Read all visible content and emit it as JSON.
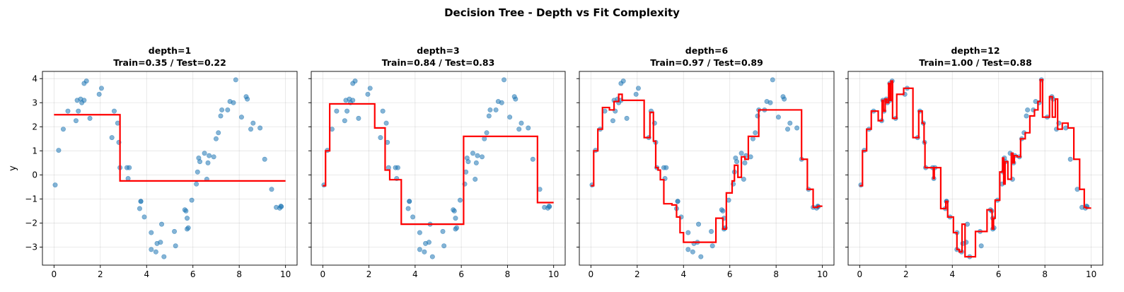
{
  "figure": {
    "suptitle": "Decision Tree - Depth vs Fit Complexity",
    "ylabel": "y"
  },
  "chart_data": {
    "type": "scatter",
    "xlim": [
      -0.5,
      10.5
    ],
    "ylim": [
      -3.75,
      4.3
    ],
    "xticks": [
      0,
      2,
      4,
      6,
      8,
      10
    ],
    "yticks": [
      -3,
      -2,
      -1,
      0,
      1,
      2,
      3,
      4
    ],
    "grid": true,
    "colors": {
      "points": "#1f77b4",
      "fit": "#ff0000"
    },
    "points": {
      "x": [
        0.05,
        0.2,
        0.4,
        0.6,
        0.95,
        1.0,
        1.05,
        1.15,
        1.2,
        1.3,
        1.3,
        1.4,
        1.55,
        1.95,
        2.05,
        2.5,
        2.6,
        2.75,
        2.8,
        2.85,
        3.15,
        3.2,
        3.25,
        3.7,
        3.75,
        3.75,
        3.9,
        4.2,
        4.2,
        4.4,
        4.45,
        4.6,
        4.65,
        4.75,
        5.2,
        5.25,
        5.65,
        5.7,
        5.75,
        5.75,
        5.8,
        5.95,
        6.15,
        6.2,
        6.25,
        6.3,
        6.5,
        6.6,
        6.65,
        6.7,
        6.9,
        7.0,
        7.1,
        7.2,
        7.25,
        7.5,
        7.6,
        7.75,
        7.85,
        8.1,
        8.3,
        8.35,
        8.5,
        8.6,
        8.9,
        9.1,
        9.4,
        9.6,
        9.75,
        9.8,
        9.82
      ],
      "y": [
        -0.42,
        1.02,
        1.9,
        2.65,
        2.25,
        3.1,
        2.65,
        3.15,
        3.0,
        3.8,
        3.1,
        3.9,
        2.35,
        3.35,
        3.6,
        1.55,
        2.65,
        2.15,
        1.35,
        0.3,
        0.3,
        -0.15,
        0.3,
        -1.4,
        -1.1,
        -1.1,
        -1.75,
        -2.4,
        -3.1,
        -3.2,
        -2.85,
        -2.8,
        -2.05,
        -3.4,
        -2.35,
        -2.95,
        -1.45,
        -1.5,
        -1.8,
        -2.25,
        -2.2,
        -1.05,
        -0.38,
        0.12,
        0.7,
        0.55,
        0.9,
        -0.18,
        0.5,
        0.8,
        0.75,
        1.5,
        1.75,
        2.45,
        2.7,
        2.7,
        3.05,
        3.0,
        3.95,
        2.4,
        3.25,
        3.15,
        1.9,
        2.15,
        1.95,
        0.65,
        -0.6,
        -1.35,
        -1.38,
        -1.3,
        -1.32
      ]
    },
    "panels": [
      {
        "title": "depth=1",
        "subtitle": "Train=0.35 / Test=0.22",
        "depth": 1,
        "train_score": 0.35,
        "test_score": 0.22,
        "fit": {
          "x": [
            0,
            2.85,
            2.85,
            10
          ],
          "y": [
            2.5,
            2.5,
            -0.25,
            -0.25
          ]
        }
      },
      {
        "title": "depth=3",
        "subtitle": "Train=0.84 / Test=0.83",
        "depth": 3,
        "train_score": 0.84,
        "test_score": 0.83,
        "fit": {
          "x": [
            0,
            0.12,
            0.12,
            0.3,
            0.3,
            2.25,
            2.25,
            2.7,
            2.7,
            2.9,
            2.9,
            3.4,
            3.4,
            6.1,
            6.1,
            9.3,
            9.3,
            10
          ],
          "y": [
            -0.45,
            -0.45,
            1.0,
            1.0,
            2.95,
            2.95,
            1.95,
            1.95,
            0.2,
            0.2,
            -0.2,
            -0.2,
            -2.05,
            -2.05,
            1.6,
            1.6,
            -1.15,
            -1.15
          ]
        }
      },
      {
        "title": "depth=6",
        "subtitle": "Train=0.97 / Test=0.89",
        "depth": 6,
        "train_score": 0.97,
        "test_score": 0.89,
        "fit": {
          "x": [
            0,
            0.12,
            0.12,
            0.3,
            0.3,
            0.5,
            0.5,
            0.8,
            0.8,
            1.0,
            1.0,
            1.2,
            1.2,
            1.35,
            1.35,
            1.6,
            1.6,
            2.3,
            2.3,
            2.55,
            2.55,
            2.7,
            2.7,
            2.8,
            2.8,
            2.9,
            2.9,
            3.0,
            3.0,
            3.15,
            3.15,
            3.5,
            3.5,
            3.7,
            3.7,
            3.85,
            3.85,
            4.0,
            4.0,
            4.6,
            4.6,
            5.4,
            5.4,
            5.7,
            5.7,
            5.85,
            5.85,
            6.1,
            6.1,
            6.2,
            6.2,
            6.35,
            6.35,
            6.5,
            6.5,
            6.65,
            6.65,
            6.8,
            6.8,
            6.95,
            6.95,
            7.25,
            7.25,
            7.75,
            7.75,
            9.1,
            9.1,
            9.35,
            9.35,
            9.6,
            9.6,
            9.8,
            9.8,
            10
          ],
          "y": [
            -0.45,
            -0.45,
            1.0,
            1.0,
            1.9,
            1.9,
            2.8,
            2.8,
            2.7,
            2.7,
            3.05,
            3.05,
            3.35,
            3.35,
            3.1,
            3.1,
            3.1,
            3.1,
            1.55,
            1.55,
            2.6,
            2.6,
            1.4,
            1.4,
            0.3,
            0.3,
            0.2,
            0.2,
            -0.2,
            -0.2,
            -1.2,
            -1.2,
            -1.25,
            -1.25,
            -1.75,
            -1.75,
            -2.4,
            -2.4,
            -2.8,
            -2.8,
            -2.8,
            -2.8,
            -1.8,
            -1.8,
            -2.25,
            -2.25,
            -0.75,
            -0.75,
            -0.25,
            -0.25,
            0.4,
            0.4,
            -0.1,
            -0.1,
            0.75,
            0.75,
            0.65,
            0.65,
            1.6,
            1.6,
            1.6,
            1.6,
            2.7,
            2.7,
            2.7,
            2.7,
            0.65,
            0.65,
            -0.6,
            -0.6,
            -1.35,
            -1.35,
            -1.3,
            -1.3
          ]
        }
      },
      {
        "title": "depth=12",
        "subtitle": "Train=1.00 / Test=0.88",
        "depth": 12,
        "train_score": 1.0,
        "test_score": 0.88,
        "fit": {
          "x": [
            0,
            0.12,
            0.12,
            0.3,
            0.3,
            0.5,
            0.5,
            0.8,
            0.8,
            0.97,
            0.97,
            1.02,
            1.02,
            1.1,
            1.1,
            1.17,
            1.17,
            1.25,
            1.25,
            1.3,
            1.3,
            1.35,
            1.35,
            1.42,
            1.42,
            1.48,
            1.48,
            1.6,
            1.6,
            1.9,
            1.9,
            2.0,
            2.0,
            2.3,
            2.3,
            2.55,
            2.55,
            2.7,
            2.7,
            2.78,
            2.78,
            2.82,
            2.82,
            3.0,
            3.0,
            3.18,
            3.18,
            3.22,
            3.22,
            3.5,
            3.5,
            3.72,
            3.72,
            3.8,
            3.8,
            4.05,
            4.05,
            4.2,
            4.2,
            4.3,
            4.3,
            4.42,
            4.42,
            4.55,
            4.55,
            4.7,
            4.7,
            5.0,
            5.0,
            5.22,
            5.22,
            5.5,
            5.5,
            5.68,
            5.68,
            5.72,
            5.72,
            5.78,
            5.78,
            5.85,
            5.85,
            6.05,
            6.05,
            6.17,
            6.17,
            6.22,
            6.22,
            6.28,
            6.28,
            6.4,
            6.4,
            6.55,
            6.55,
            6.62,
            6.62,
            6.68,
            6.68,
            6.8,
            6.8,
            6.95,
            6.95,
            7.15,
            7.15,
            7.22,
            7.22,
            7.35,
            7.35,
            7.55,
            7.55,
            7.7,
            7.7,
            7.8,
            7.8,
            7.9,
            7.9,
            8.2,
            8.2,
            8.32,
            8.32,
            8.45,
            8.45,
            8.55,
            8.55,
            8.75,
            8.75,
            9.0,
            9.0,
            9.25,
            9.25,
            9.5,
            9.5,
            9.7,
            9.7,
            9.79,
            9.79,
            10
          ],
          "y": [
            -0.45,
            -0.45,
            1.0,
            1.0,
            1.9,
            1.9,
            2.65,
            2.65,
            2.25,
            2.25,
            3.1,
            3.1,
            2.65,
            2.65,
            3.15,
            3.15,
            3.0,
            3.0,
            3.8,
            3.8,
            3.1,
            3.1,
            3.9,
            3.9,
            2.35,
            2.35,
            2.35,
            2.35,
            3.35,
            3.35,
            3.6,
            3.6,
            3.6,
            3.6,
            1.55,
            1.55,
            2.65,
            2.65,
            2.15,
            2.15,
            1.35,
            1.35,
            0.3,
            0.3,
            0.3,
            0.3,
            -0.15,
            -0.15,
            0.3,
            0.3,
            -1.4,
            -1.4,
            -1.1,
            -1.1,
            -1.75,
            -1.75,
            -2.4,
            -2.4,
            -3.1,
            -3.1,
            -3.2,
            -3.2,
            -2.05,
            -2.05,
            -3.4,
            -3.4,
            -3.4,
            -3.4,
            -2.35,
            -2.35,
            -2.35,
            -2.35,
            -1.45,
            -1.45,
            -1.5,
            -1.5,
            -2.25,
            -2.25,
            -1.8,
            -1.8,
            -1.05,
            -1.05,
            0.12,
            0.12,
            0.7,
            0.7,
            -0.38,
            -0.38,
            0.55,
            0.55,
            -0.18,
            -0.18,
            0.9,
            0.9,
            0.5,
            0.5,
            0.8,
            0.8,
            0.75,
            0.75,
            1.5,
            1.5,
            1.75,
            1.75,
            1.75,
            1.75,
            2.45,
            2.45,
            2.7,
            2.7,
            3.05,
            3.05,
            3.95,
            3.95,
            2.4,
            2.4,
            3.25,
            3.25,
            2.4,
            2.4,
            3.15,
            3.15,
            1.9,
            1.9,
            2.15,
            2.15,
            1.95,
            1.95,
            0.65,
            0.65,
            -0.6,
            -0.6,
            -1.35,
            -1.35,
            -1.38,
            -1.38
          ]
        }
      }
    ]
  }
}
